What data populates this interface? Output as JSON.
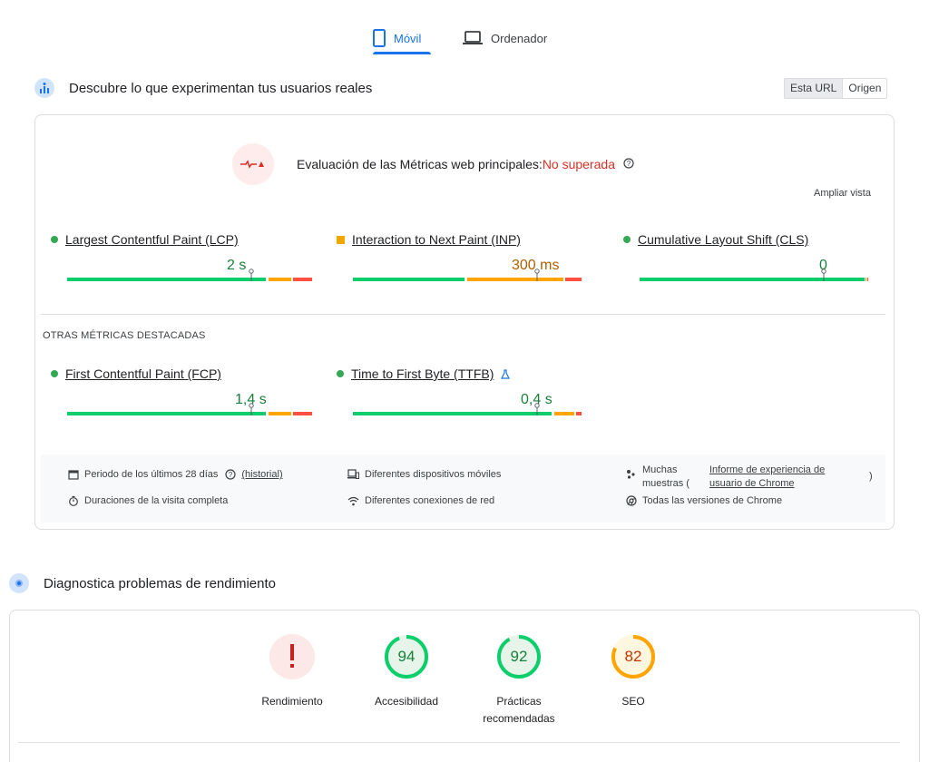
{
  "tabs": {
    "mobile_label": "Móvil",
    "desktop_label": "Ordenador"
  },
  "crux": {
    "title": "Descubre lo que experimentan tus usuarios reales",
    "toggle": {
      "url": "Esta URL",
      "origin": "Origen"
    },
    "assessment": {
      "label": "Evaluación de las Métricas web principales:",
      "status": "No superada",
      "status_color": "#d93025"
    },
    "expand_label": "Ampliar vista",
    "metrics": [
      {
        "name": "Largest Contentful Paint (LCP)",
        "value": "2 s",
        "status": "good",
        "marker": 0.75
      },
      {
        "name": "Interaction to Next Paint (INP)",
        "value": "300 ms",
        "status": "needs-improvement",
        "marker": 0.75
      },
      {
        "name": "Cumulative Layout Shift (CLS)",
        "value": "0",
        "status": "good",
        "marker": 0.75
      }
    ],
    "other_label": "OTRAS MÉTRICAS DESTACADAS",
    "other_metrics": [
      {
        "name": "First Contentful Paint (FCP)",
        "value": "1,4 s",
        "status": "good",
        "marker": 0.75
      },
      {
        "name": "Time to First Byte (TTFB)",
        "value": "0,4 s",
        "status": "good",
        "marker": 0.75
      }
    ],
    "footer": {
      "period": "Periodo de los últimos 28 días",
      "history": "(historial)",
      "visit": "Duraciones de la visita completa",
      "devices": "Diferentes dispositivos móviles",
      "network": "Diferentes conexiones de red",
      "samples_prefix": "Muchas muestras (",
      "samples_link": "Informe de experiencia de usuario de Chrome",
      "samples_suffix": ")",
      "chrome": "Todas las versiones de Chrome"
    }
  },
  "lighthouse": {
    "title": "Diagnostica problemas de rendimiento",
    "scores": [
      {
        "label": "Rendimiento",
        "value": "!",
        "status": "fail"
      },
      {
        "label": "Accesibilidad",
        "value": "94",
        "status": "pass"
      },
      {
        "label": "Prácticas recomendadas",
        "value": "92",
        "status": "pass"
      },
      {
        "label": "SEO",
        "value": "82",
        "status": "average"
      }
    ]
  },
  "colors": {
    "accent": "#1a73e8",
    "good": "#0cce6b",
    "average": "#ffa400",
    "poor": "#ff4e42"
  }
}
